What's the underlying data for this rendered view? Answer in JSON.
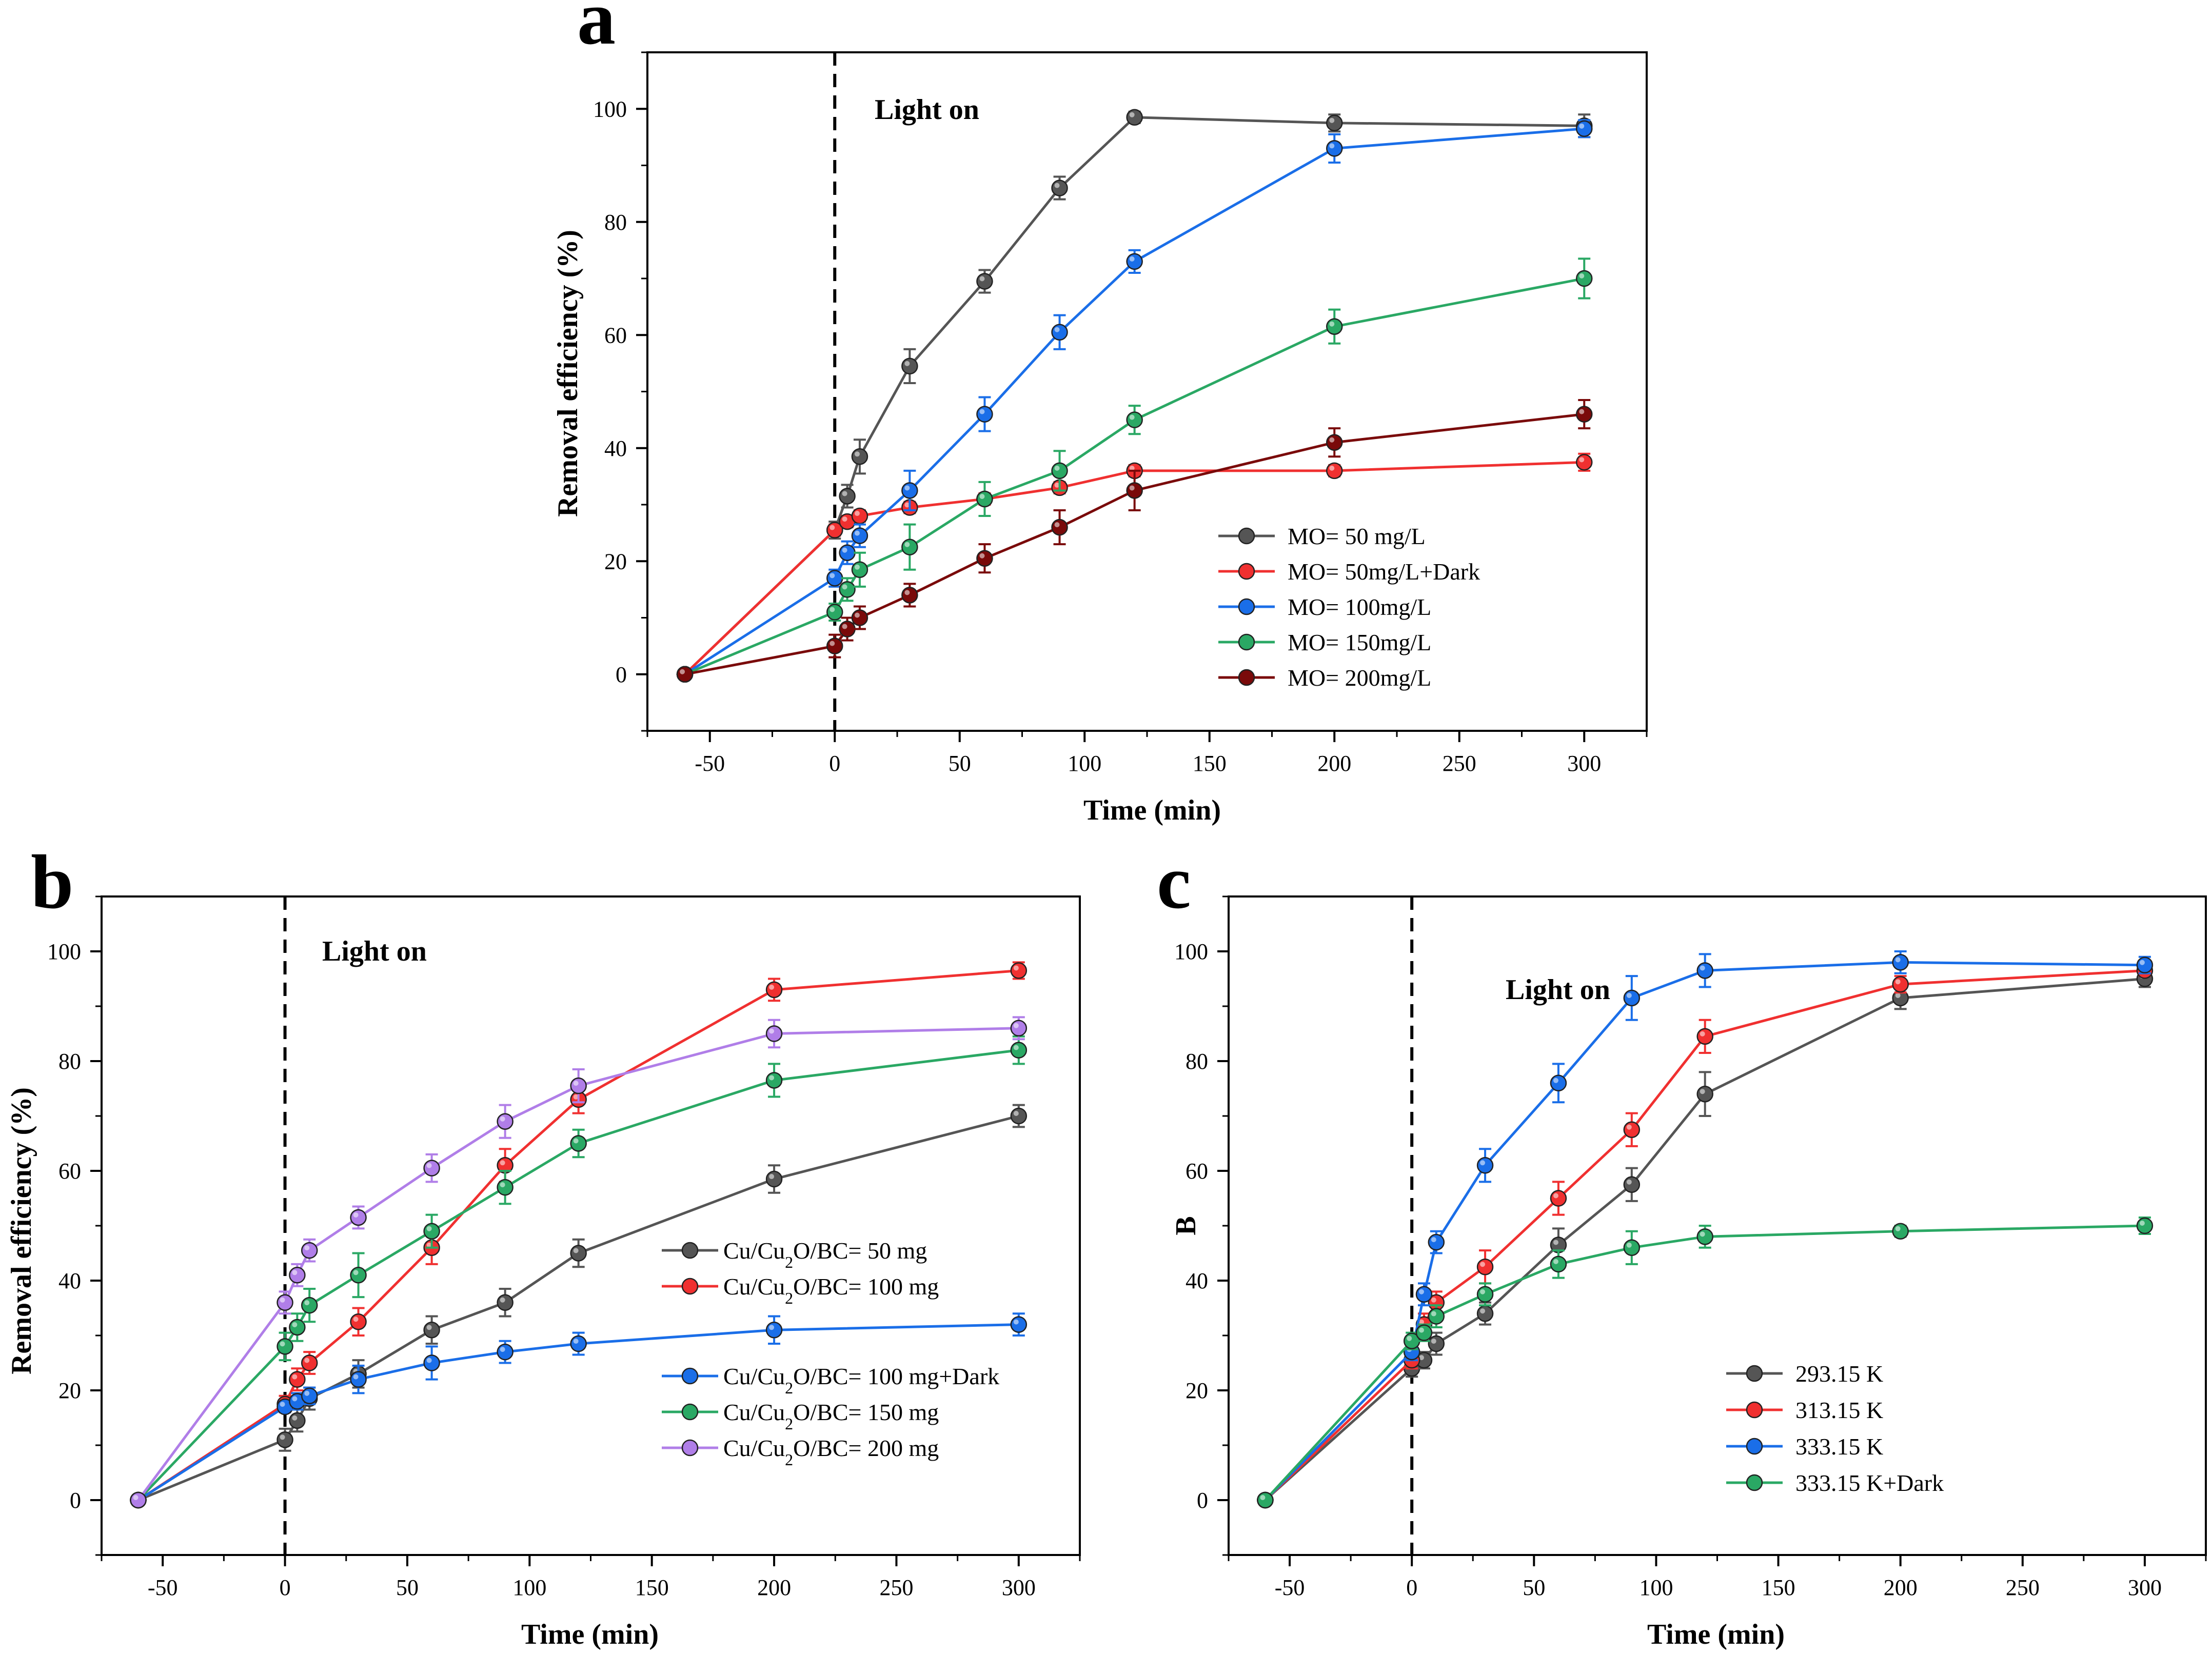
{
  "chart_data": [
    {
      "type": "line",
      "panel": "a",
      "xlabel": "Time (min)",
      "ylabel": "Removal efficiency (%)",
      "xlim": [
        -75,
        325
      ],
      "ylim": [
        -10,
        110
      ],
      "xticks": [
        -50,
        0,
        50,
        100,
        150,
        200,
        250,
        300
      ],
      "yticks": [
        0,
        20,
        40,
        60,
        80,
        100
      ],
      "annotation": "Light on",
      "light_on_x": 0,
      "x": [
        -60,
        0,
        5,
        10,
        30,
        60,
        90,
        120,
        200,
        300
      ],
      "series": [
        {
          "name": "MO= 50 mg/L",
          "color": "#555555",
          "values": [
            0,
            25.5,
            31.5,
            38.5,
            54.5,
            69.5,
            86,
            98.5,
            97.5,
            97
          ],
          "errors": [
            0,
            1.5,
            2,
            3,
            3,
            2,
            2,
            1,
            1.5,
            2
          ]
        },
        {
          "name": "MO= 50mg/L+Dark",
          "color": "#f03030",
          "values": [
            0,
            25.5,
            27,
            28,
            29.5,
            31,
            33,
            36,
            36,
            37.5
          ],
          "errors": [
            0,
            1,
            1,
            1,
            1,
            1,
            1,
            1,
            1,
            1.5
          ]
        },
        {
          "name": "MO= 100mg/L",
          "color": "#1a6ee8",
          "values": [
            0,
            17,
            21.5,
            24.5,
            32.5,
            46,
            60.5,
            73,
            93,
            96.5
          ],
          "errors": [
            0,
            1.5,
            2,
            2,
            3.5,
            3,
            3,
            2,
            2.5,
            1.5
          ]
        },
        {
          "name": "MO= 150mg/L",
          "color": "#2aa864",
          "values": [
            0,
            11,
            15,
            18.5,
            22.5,
            31,
            36,
            45,
            61.5,
            70
          ],
          "errors": [
            0,
            1.5,
            2,
            3,
            4,
            3,
            3.5,
            2.5,
            3,
            3.5
          ]
        },
        {
          "name": "MO= 200mg/L",
          "color": "#7a0a0a",
          "values": [
            0,
            5,
            8,
            10,
            14,
            20.5,
            26,
            32.5,
            41,
            46
          ],
          "errors": [
            0,
            2,
            2,
            2,
            2,
            2.5,
            3,
            3.5,
            2.5,
            2.5
          ]
        }
      ]
    },
    {
      "type": "line",
      "panel": "b",
      "xlabel": "Time (min)",
      "ylabel": "Removal efficiency (%)",
      "xlim": [
        -75,
        325
      ],
      "ylim": [
        -10,
        110
      ],
      "xticks": [
        -50,
        0,
        50,
        100,
        150,
        200,
        250,
        300
      ],
      "yticks": [
        0,
        20,
        40,
        60,
        80,
        100
      ],
      "annotation": "Light on",
      "light_on_x": 0,
      "x": [
        -60,
        0,
        5,
        10,
        30,
        60,
        90,
        120,
        200,
        300
      ],
      "series": [
        {
          "name": "Cu/Cu2O/BC= 50 mg",
          "color": "#555555",
          "values": [
            0,
            11,
            14.5,
            18.5,
            23,
            31,
            36,
            45,
            58.5,
            70
          ],
          "errors": [
            0,
            2,
            2,
            2,
            2.5,
            2.5,
            2.5,
            2.5,
            2.5,
            2
          ]
        },
        {
          "name": "Cu/Cu2O/BC= 100 mg",
          "color": "#f03030",
          "values": [
            0,
            17.5,
            22,
            25,
            32.5,
            46,
            61,
            73,
            93,
            96.5
          ],
          "errors": [
            0,
            1.5,
            2,
            2,
            2.5,
            3,
            3,
            2.5,
            2,
            1.5
          ]
        },
        {
          "name": "Cu/Cu2O/BC= 100 mg+Dark",
          "color": "#1a6ee8",
          "values": [
            0,
            17,
            18,
            19,
            22,
            25,
            27,
            28.5,
            31,
            32
          ],
          "errors": [
            0,
            1,
            1.5,
            1.5,
            2.5,
            3,
            2,
            2,
            2.5,
            2
          ]
        },
        {
          "name": "Cu/Cu2O/BC= 150 mg",
          "color": "#2aa864",
          "values": [
            0,
            28,
            31.5,
            35.5,
            41,
            49,
            57,
            65,
            76.5,
            82
          ],
          "errors": [
            0,
            2.5,
            2.5,
            3,
            4,
            3,
            3,
            2.5,
            3,
            2.5
          ]
        },
        {
          "name": "Cu/Cu2O/BC= 200 mg",
          "color": "#b07ee8",
          "values": [
            0,
            36,
            41,
            45.5,
            51.5,
            60.5,
            69,
            75.5,
            85,
            86
          ],
          "errors": [
            0,
            2,
            2,
            2,
            2,
            2.5,
            3,
            3,
            2.5,
            2
          ]
        }
      ]
    },
    {
      "type": "line",
      "panel": "c",
      "xlabel": "Time (min)",
      "ylabel": "B",
      "xlim": [
        -75,
        325
      ],
      "ylim": [
        -10,
        110
      ],
      "xticks": [
        -50,
        0,
        50,
        100,
        150,
        200,
        250,
        300
      ],
      "yticks": [
        0,
        20,
        40,
        60,
        80,
        100
      ],
      "annotation": "Light on",
      "light_on_x": 0,
      "x": [
        -60,
        0,
        5,
        10,
        30,
        60,
        90,
        120,
        200,
        300
      ],
      "series": [
        {
          "name": "293.15 K",
          "color": "#555555",
          "values": [
            0,
            24,
            25.5,
            28.5,
            34,
            46.5,
            57.5,
            74,
            91.5,
            95
          ],
          "errors": [
            0,
            1.5,
            1.5,
            2,
            2,
            3,
            3,
            4,
            2,
            1.5
          ]
        },
        {
          "name": "313.15 K",
          "color": "#f03030",
          "values": [
            0,
            25.5,
            32,
            36,
            42.5,
            55,
            67.5,
            84.5,
            94,
            96.5
          ],
          "errors": [
            0,
            1.5,
            2,
            2,
            3,
            3,
            3,
            3,
            1.5,
            1
          ]
        },
        {
          "name": "333.15 K",
          "color": "#1a6ee8",
          "values": [
            0,
            27,
            37.5,
            47,
            61,
            76,
            91.5,
            96.5,
            98,
            97.5
          ],
          "errors": [
            0,
            1.5,
            2,
            2,
            3,
            3.5,
            4,
            3,
            2,
            1.5
          ]
        },
        {
          "name": "333.15 K+Dark",
          "color": "#2aa864",
          "values": [
            0,
            29,
            30.5,
            33.5,
            37.5,
            43,
            46,
            48,
            49,
            50
          ],
          "errors": [
            0,
            1.5,
            1.5,
            2,
            2,
            2.5,
            3,
            2,
            1,
            1.5
          ]
        }
      ]
    }
  ]
}
